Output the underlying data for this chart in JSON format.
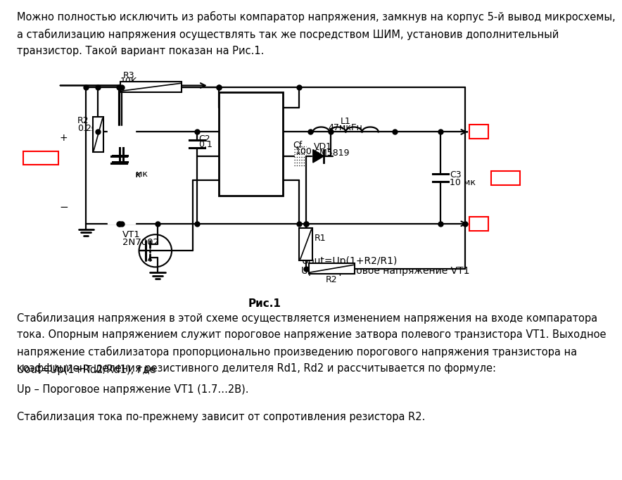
{
  "bg_color": "#ffffff",
  "text_color": "#000000",
  "top_paragraph": "Можно полностью исключить из работы компаратор напряжения, замкнув на корпус 5-й вывод микросхемы,\nа стабилизацию напряжения осуществлять так же посредством ШИМ, установив дополнительный\nтранзистор. Такой вариант показан на Рис.1.",
  "caption": "Рис.1",
  "bottom_paragraph1": "Стабилизация напряжения в этой схеме осуществляется изменением напряжения на входе компаратора\nтока. Опорным напряжением служит пороговое напряжение затвора полевого транзистора VT1. Выходное\nнапряжение стабилизатора пропорционально произведению порогового напряжения транзистора на\nкоэффициент деления резистивного делителя Rd1, Rd2 и рассчитывается по формуле:",
  "bottom_paragraph2": "Uout=Up(1+Rd2/Rd1), где",
  "bottom_paragraph3": "Up – Пороговое напряжение VT1 (1.7…2В).",
  "bottom_paragraph4": "Стабилизация тока по-прежнему зависит от сопротивления резистора R2.",
  "red_color": "#ff0000"
}
